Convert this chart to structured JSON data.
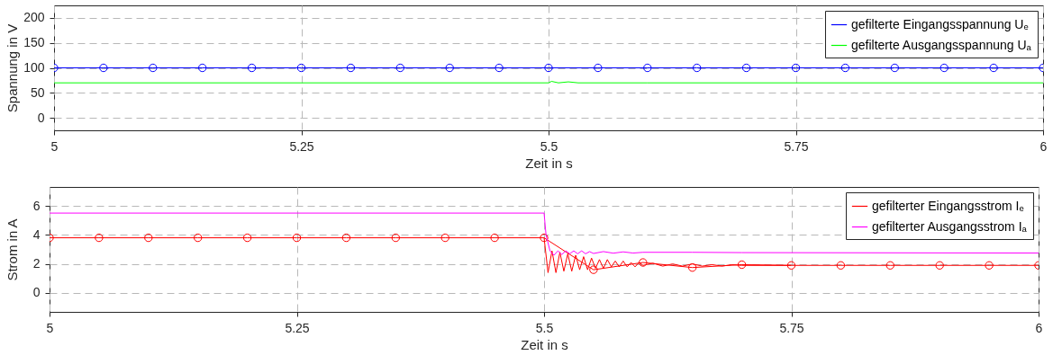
{
  "chart_data": [
    {
      "type": "line",
      "xlabel": "Zeit in s",
      "ylabel": "Spannung in V",
      "xlim": [
        5,
        6
      ],
      "xticks": [
        5,
        5.25,
        5.5,
        5.75,
        6
      ],
      "ylim": [
        -25,
        225
      ],
      "yticks": [
        0,
        50,
        100,
        150,
        200
      ],
      "grid": true,
      "legend": "top right",
      "series": [
        {
          "name": "gefilterte Eingangsspannung Uₑ",
          "color": "#0000ff",
          "marker": "circle",
          "x": [
            5,
            5.05,
            5.1,
            5.15,
            5.2,
            5.25,
            5.3,
            5.35,
            5.4,
            5.45,
            5.5,
            5.55,
            5.6,
            5.65,
            5.7,
            5.75,
            5.8,
            5.85,
            5.9,
            5.95,
            6
          ],
          "values": [
            100,
            100,
            100,
            100,
            100,
            100,
            100,
            100,
            100,
            100,
            100,
            100,
            100,
            100,
            100,
            100,
            100,
            100,
            100,
            100,
            100
          ]
        },
        {
          "name": "gefilterte Ausgangsspannung Uₐ",
          "color": "#00ff00",
          "x": [
            5,
            5.5,
            5.503,
            5.51,
            5.52,
            5.53,
            5.6,
            6
          ],
          "values": [
            70,
            70,
            73,
            70,
            72,
            70,
            70,
            70
          ]
        }
      ]
    },
    {
      "type": "line",
      "xlabel": "Zeit in s",
      "ylabel": "Strom in A",
      "xlim": [
        5,
        6
      ],
      "xticks": [
        5,
        5.25,
        5.5,
        5.75,
        6
      ],
      "ylim": [
        -1.3,
        7.3
      ],
      "yticks": [
        0,
        2,
        4,
        6
      ],
      "grid": true,
      "legend": "top right",
      "series": [
        {
          "name": "gefilterter Eingangsstrom Iₑ",
          "color": "#ff0000",
          "marker": "circle",
          "x": [
            5,
            5.05,
            5.1,
            5.15,
            5.2,
            5.25,
            5.3,
            5.35,
            5.4,
            5.45,
            5.5,
            5.55,
            5.6,
            5.65,
            5.7,
            5.75,
            5.8,
            5.85,
            5.9,
            5.95,
            6
          ],
          "values": [
            3.8,
            3.8,
            3.8,
            3.8,
            3.8,
            3.8,
            3.8,
            3.8,
            3.8,
            3.8,
            3.8,
            1.6,
            2.1,
            1.75,
            1.95,
            1.9,
            1.9,
            1.9,
            1.9,
            1.9,
            1.9
          ]
        },
        {
          "color": "#ff0000",
          "x": [
            5.5,
            5.504,
            5.508,
            5.512,
            5.516,
            5.52,
            5.524,
            5.528,
            5.532,
            5.536,
            5.54,
            5.544,
            5.548,
            5.552,
            5.556,
            5.56,
            5.564,
            5.568,
            5.572,
            5.576,
            5.58,
            5.584,
            5.588,
            5.592,
            5.596,
            5.6,
            5.61,
            5.62,
            5.63,
            5.64,
            5.65,
            5.66,
            5.67,
            5.68,
            5.69,
            5.7,
            5.75
          ],
          "values": [
            3.8,
            1.4,
            2.9,
            1.4,
            2.8,
            1.5,
            2.7,
            1.5,
            2.6,
            1.6,
            2.5,
            1.6,
            2.4,
            1.7,
            2.3,
            1.7,
            2.3,
            1.8,
            2.2,
            1.8,
            2.2,
            1.8,
            2.1,
            1.8,
            2.1,
            1.9,
            2.05,
            1.85,
            2,
            1.85,
            2,
            1.85,
            1.95,
            1.85,
            1.95,
            1.9,
            1.9
          ]
        },
        {
          "name": "gefilterter Ausgangsstrom Iₐ",
          "color": "#ff00ff",
          "x": [
            5,
            5.5,
            5.502,
            5.506,
            5.51,
            5.514,
            5.518,
            5.522,
            5.526,
            5.53,
            5.534,
            5.538,
            5.542,
            5.546,
            5.55,
            5.56,
            5.57,
            5.58,
            5.59,
            5.6,
            5.65,
            5.7,
            6
          ],
          "values": [
            5.5,
            5.5,
            4,
            2.9,
            2.6,
            2.9,
            2.65,
            2.9,
            2.7,
            2.9,
            2.7,
            2.9,
            2.7,
            2.85,
            2.72,
            2.85,
            2.74,
            2.83,
            2.75,
            2.8,
            2.8,
            2.78,
            2.75
          ]
        }
      ]
    }
  ]
}
